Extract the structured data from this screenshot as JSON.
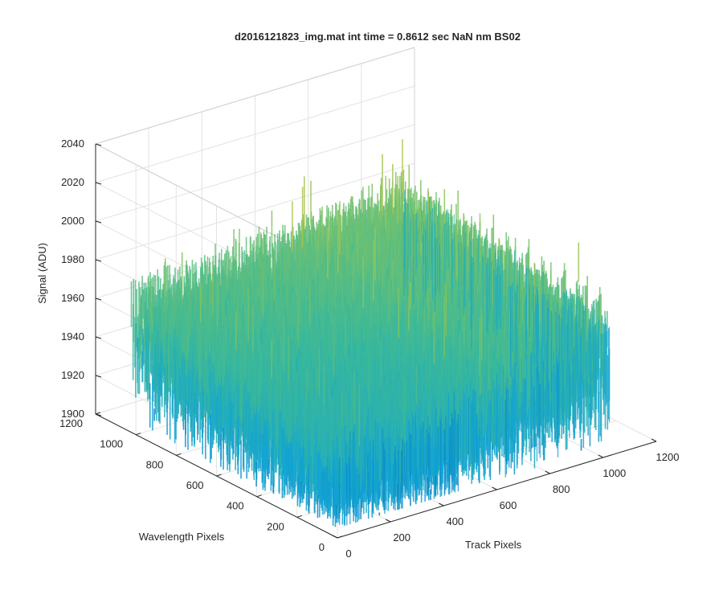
{
  "chart_data": {
    "type": "surface",
    "title": "d2016121823_img.mat int time = 0.8612 sec  NaN nm BS02",
    "xlabel": "Track Pixels",
    "ylabel": "Wavelength Pixels",
    "zlabel": "Signal (ADU)",
    "xlim": [
      0,
      1200
    ],
    "ylim": [
      0,
      1200
    ],
    "zlim": [
      1900,
      2040
    ],
    "xticks": [
      "0",
      "200",
      "400",
      "600",
      "800",
      "1000",
      "1200"
    ],
    "yticks": [
      "0",
      "200",
      "400",
      "600",
      "800",
      "1000",
      "1200"
    ],
    "zticks": [
      "1900",
      "1920",
      "1940",
      "1960",
      "1980",
      "2000",
      "2020",
      "2040"
    ],
    "surface_extent": {
      "x": [
        1,
        1024
      ],
      "y": [
        1,
        1024
      ]
    },
    "signal_range": [
      1905,
      2030
    ],
    "typical_signal": 1965,
    "noise_amplitude": 22,
    "grid": true,
    "colormap": [
      "#0072bd",
      "#12a4d4",
      "#3ab89a",
      "#8cc55a",
      "#e6c23a"
    ],
    "box_color": "#262626",
    "grid_color": "#e3e3e3"
  }
}
